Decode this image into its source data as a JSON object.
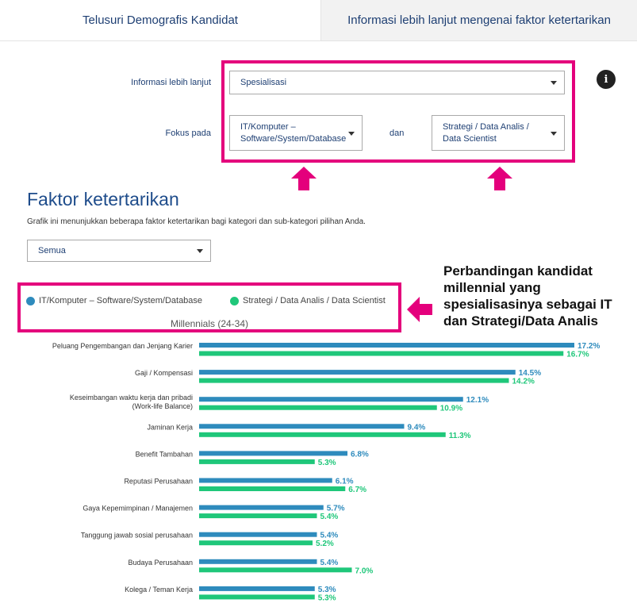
{
  "tabs": [
    {
      "label": "Telusuri Demografis Kandidat"
    },
    {
      "label": "Informasi lebih lanjut mengenai faktor ketertarikan"
    }
  ],
  "filters": {
    "info_label": "Informasi lebih lanjut",
    "info_value": "Spesialisasi",
    "focus_label": "Fokus pada",
    "focus_a": "IT/Komputer – Software/System/Database",
    "and_label": "dan",
    "focus_b": "Strategi / Data Analis / Data Scientist",
    "info_icon": "i"
  },
  "section": {
    "title": "Faktor ketertarikan",
    "description": "Grafik ini menunjukkan beberapa faktor ketertarikan bagi kategori dan sub-kategori pilihan Anda.",
    "filter_value": "Semua"
  },
  "annotation": "Perbandingan kandidat millennial yang spesialisasinya sebagai IT dan Strategi/Data Analis",
  "colors": {
    "accent_pink": "#e4007c",
    "series_a": "#2e8bbd",
    "series_b": "#1fc77a",
    "title_blue": "#1e4c8b"
  },
  "chart_data": {
    "type": "bar",
    "orientation": "horizontal",
    "title": "Millennials (24-34)",
    "categories": [
      "Peluang Pengembangan dan Jenjang Karier",
      "Gaji / Kompensasi",
      "Keseimbangan waktu kerja dan pribadi (Work-life Balance)",
      "Jaminan Kerja",
      "Benefit Tambahan",
      "Reputasi Perusahaan",
      "Gaya Kepemimpinan / Manajemen",
      "Tanggung jawab sosial perusahaan",
      "Budaya Perusahaan",
      "Kolega / Teman Kerja"
    ],
    "series": [
      {
        "name": "IT/Komputer – Software/System/Database",
        "values": [
          17.2,
          14.5,
          12.1,
          9.4,
          6.8,
          6.1,
          5.7,
          5.4,
          5.4,
          5.3
        ]
      },
      {
        "name": "Strategi / Data Analis / Data Scientist",
        "values": [
          16.7,
          14.2,
          10.9,
          11.3,
          5.3,
          6.7,
          5.4,
          5.2,
          7.0,
          5.3
        ]
      }
    ],
    "value_suffix": "%",
    "legend_position": "top",
    "grid": false
  }
}
